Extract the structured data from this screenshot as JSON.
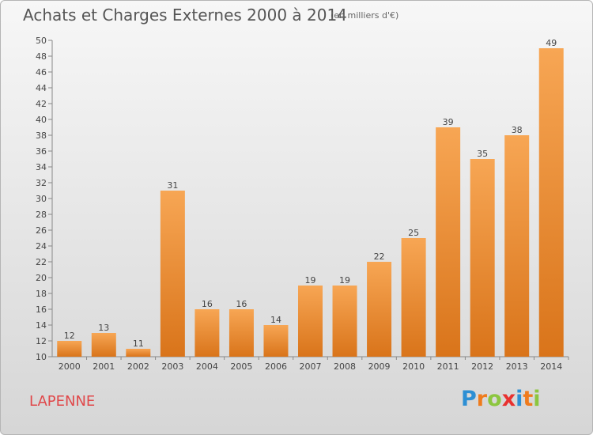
{
  "chart_data": {
    "type": "bar",
    "title": "Achats et Charges Externes 2000 à 2014",
    "subtitle": "(en milliers d'€)",
    "categories": [
      "2000",
      "2001",
      "2002",
      "2003",
      "2004",
      "2005",
      "2006",
      "2007",
      "2008",
      "2009",
      "2010",
      "2011",
      "2012",
      "2013",
      "2014"
    ],
    "values": [
      12,
      13,
      11,
      31,
      16,
      16,
      14,
      19,
      19,
      22,
      25,
      39,
      35,
      38,
      49
    ],
    "ylim": [
      10,
      50
    ],
    "ytick_step": 2,
    "grid": false,
    "bar_color_top": "#f7a654",
    "bar_color_bottom": "#d9741a"
  },
  "footer": {
    "commune": "LAPENNE"
  },
  "logo": {
    "text": "Proxiti",
    "letters": [
      "P",
      "r",
      "o",
      "x",
      "i",
      "t",
      "i"
    ],
    "colors": [
      "#2d8fd4",
      "#ef7b1d",
      "#8cc63f",
      "#e8312f",
      "#2d8fd4",
      "#ef7b1d",
      "#8cc63f"
    ]
  }
}
